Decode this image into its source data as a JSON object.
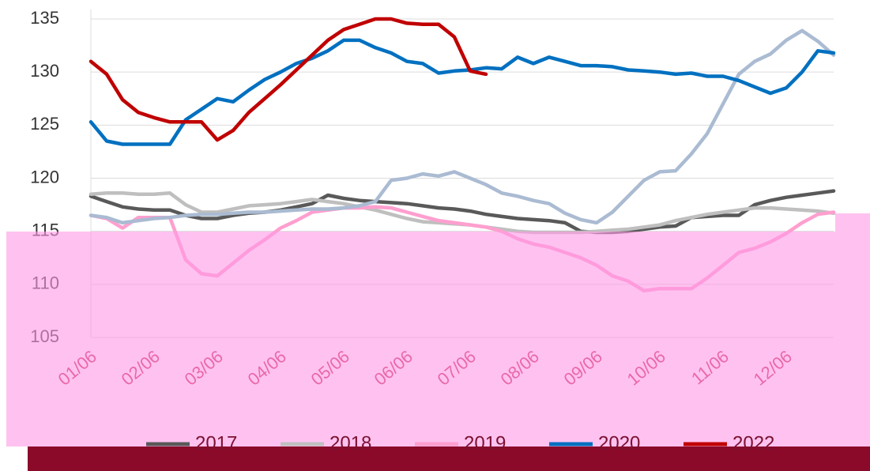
{
  "chart_data": {
    "type": "line",
    "categories": [
      "01/06",
      null,
      null,
      null,
      "02/06",
      null,
      null,
      null,
      "03/06",
      null,
      null,
      null,
      "04/06",
      null,
      null,
      null,
      "05/06",
      null,
      null,
      null,
      "06/06",
      null,
      null,
      null,
      "07/06",
      null,
      null,
      null,
      "08/06",
      null,
      null,
      null,
      "09/06",
      null,
      null,
      null,
      "10/06",
      null,
      null,
      null,
      "11/06",
      null,
      null,
      null,
      "12/06",
      null,
      null,
      null
    ],
    "series": [
      {
        "name": "2017",
        "color": "#595959",
        "values": [
          118.3,
          117.8,
          117.3,
          117.1,
          117,
          117,
          116.5,
          116.2,
          116.2,
          116.5,
          116.7,
          116.8,
          117,
          117.3,
          117.6,
          118.4,
          118.1,
          117.9,
          117.8,
          117.7,
          117.6,
          117.4,
          117.2,
          117.1,
          116.9,
          116.6,
          116.4,
          116.2,
          116.1,
          116,
          115.8,
          115,
          114.9,
          114.9,
          115,
          115.2,
          115.4,
          115.5,
          116.3,
          116.4,
          116.5,
          116.5,
          117.5,
          117.9,
          118.2,
          118.4,
          118.6,
          118.8
        ]
      },
      {
        "name": "2018",
        "color": "#bfbfbf",
        "values": [
          118.5,
          118.6,
          118.6,
          118.5,
          118.5,
          118.6,
          117.5,
          116.8,
          116.8,
          117.1,
          117.4,
          117.5,
          117.6,
          117.8,
          118,
          117.8,
          117.6,
          117.3,
          117,
          116.6,
          116.2,
          115.9,
          115.8,
          115.7,
          115.6,
          115.4,
          115.2,
          115,
          114.9,
          114.9,
          114.9,
          114.9,
          115,
          115.1,
          115.2,
          115.4,
          115.6,
          116,
          116.3,
          116.6,
          116.8,
          117,
          117.2,
          117.2,
          117.1,
          117,
          116.9,
          116.7
        ]
      },
      {
        "name": "2019",
        "color": "#ff9fcf",
        "values": [
          116.5,
          116.2,
          115.3,
          116.3,
          116.3,
          116.3,
          112.3,
          111,
          110.8,
          112,
          113.2,
          114.2,
          115.3,
          116,
          116.8,
          117,
          117.2,
          117.2,
          117.3,
          117.2,
          116.8,
          116.4,
          116,
          115.8,
          115.6,
          115.4,
          115,
          114.3,
          113.8,
          113.5,
          113,
          112.5,
          111.8,
          110.8,
          110.3,
          109.4,
          109.6,
          109.6,
          109.6,
          110.6,
          111.8,
          113,
          113.4,
          114,
          114.8,
          115.8,
          116.6,
          116.8
        ]
      },
      {
        "color": "#aabbd2",
        "values": [
          116.5,
          116.3,
          115.8,
          116,
          116.2,
          116.3,
          116.5,
          116.6,
          116.6,
          116.7,
          116.8,
          116.8,
          116.9,
          117,
          117.1,
          117.1,
          117.2,
          117.4,
          117.8,
          119.8,
          120,
          120.4,
          120.2,
          120.6,
          120,
          119.4,
          118.6,
          118.3,
          117.9,
          117.6,
          116.7,
          116.1,
          115.8,
          116.8,
          118.3,
          119.8,
          120.6,
          120.7,
          122.3,
          124.2,
          127,
          129.8,
          131,
          131.7,
          133,
          133.9,
          132.9,
          131.6
        ]
      },
      {
        "name": "2020",
        "color": "#0070c0",
        "values": [
          125.3,
          123.5,
          123.2,
          123.2,
          123.2,
          123.2,
          125.5,
          126.5,
          127.5,
          127.2,
          128.3,
          129.3,
          130,
          130.8,
          131.3,
          132,
          133,
          133,
          132.3,
          131.8,
          131,
          130.8,
          129.9,
          130.1,
          130.2,
          130.4,
          130.3,
          131.4,
          130.8,
          131.4,
          131,
          130.6,
          130.6,
          130.5,
          130.2,
          130.1,
          130,
          129.8,
          129.9,
          129.6,
          129.6,
          129.2,
          128.6,
          128,
          128.5,
          130,
          132,
          131.8
        ]
      },
      {
        "name": "2022",
        "color": "#c00000",
        "values": [
          131,
          129.8,
          127.4,
          126.2,
          125.7,
          125.3,
          125.3,
          125.3,
          123.6,
          124.5,
          126.2,
          127.5,
          128.8,
          130.2,
          131.6,
          133,
          134,
          134.5,
          135,
          135,
          134.6,
          134.5,
          134.5,
          133.3,
          130.1,
          129.8,
          null,
          null,
          null,
          null,
          null,
          null,
          null,
          null,
          null,
          null,
          null,
          null,
          null,
          null,
          null,
          null,
          null,
          null,
          null,
          null,
          null,
          null
        ]
      }
    ],
    "ylim": [
      105,
      135
    ],
    "yticks": [
      105,
      110,
      115,
      120,
      125,
      130,
      135
    ],
    "grid": true
  }
}
